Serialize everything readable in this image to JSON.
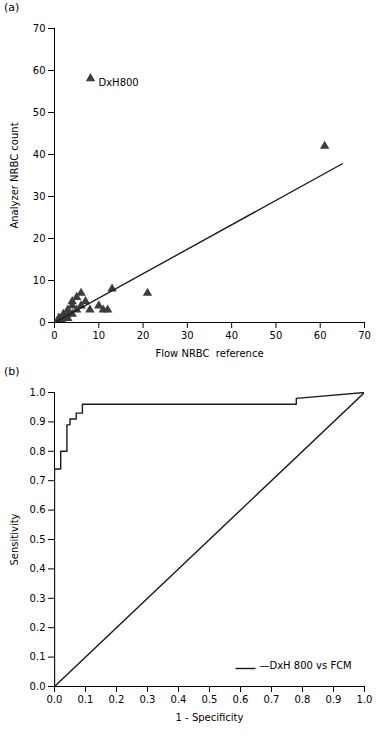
{
  "chart_data": [
    {
      "type": "scatter",
      "title": "(a)",
      "xlabel": "Flow NRBC  reference",
      "ylabel": "Analyzer NRBC count",
      "xlim": [
        0,
        70
      ],
      "ylim": [
        0,
        70
      ],
      "xticks": [
        0,
        10,
        20,
        30,
        40,
        50,
        60,
        70
      ],
      "yticks": [
        0,
        10,
        20,
        30,
        40,
        50,
        60,
        70
      ],
      "legend": "upper left",
      "series": [
        {
          "name": "DxH800",
          "type": "scatter",
          "color": "#3d3d3d",
          "marker": "triangle",
          "x": [
            1,
            1,
            1,
            1,
            2,
            2,
            2,
            3,
            3,
            3,
            4,
            4,
            4,
            5,
            5,
            6,
            6,
            7,
            8,
            10,
            11,
            12,
            13,
            21,
            61
          ],
          "values": [
            0,
            0,
            1,
            1,
            0,
            1,
            2,
            1,
            2,
            3,
            2,
            4,
            5,
            3,
            6,
            4,
            7,
            5,
            3,
            4,
            3,
            3,
            8,
            7,
            42
          ]
        },
        {
          "type": "line",
          "color": "#1a1a1a",
          "x": [
            0,
            65
          ],
          "values": [
            0,
            37.8
          ]
        }
      ]
    },
    {
      "type": "line",
      "title": "(b)",
      "xlabel": "1 - Specificity",
      "ylabel": "Sensitivity",
      "xlim": [
        0.0,
        1.0
      ],
      "ylim": [
        0.0,
        1.0
      ],
      "xticks": [
        {
          "value": 0,
          "label": "0.0"
        },
        0.1,
        0.2,
        0.3,
        0.4,
        0.5,
        0.6,
        0.7,
        0.8,
        0.9,
        {
          "value": 1,
          "label": "1.0"
        }
      ],
      "yticks": [
        {
          "value": 0,
          "label": "0.0"
        },
        0.1,
        0.2,
        0.3,
        0.4,
        0.5,
        0.6,
        0.7,
        0.8,
        0.9,
        {
          "value": 1,
          "label": "1.0"
        }
      ],
      "legend": "lower right",
      "series": [
        {
          "name": "—DxH 800 vs FCM",
          "type": "line",
          "color": "#1a1a1a",
          "x": [
            0.0,
            0.0,
            0.02,
            0.02,
            0.04,
            0.04,
            0.05,
            0.05,
            0.07,
            0.07,
            0.09,
            0.09,
            0.78,
            0.78,
            1.0
          ],
          "values": [
            0.0,
            0.74,
            0.74,
            0.8,
            0.8,
            0.89,
            0.89,
            0.91,
            0.91,
            0.93,
            0.93,
            0.96,
            0.96,
            0.98,
            1.0
          ]
        },
        {
          "type": "line",
          "color": "#1a1a1a",
          "x": [
            0.0,
            1.0
          ],
          "values": [
            0.0,
            1.0
          ]
        }
      ]
    }
  ]
}
